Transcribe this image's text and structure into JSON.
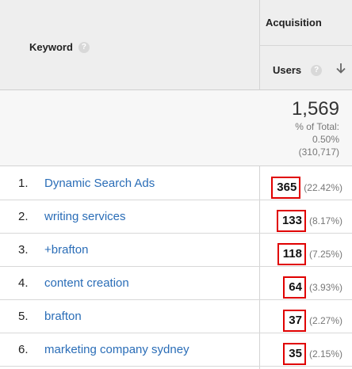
{
  "header": {
    "keyword_label": "Keyword",
    "group_label": "Acquisition",
    "users_label": "Users",
    "help_glyph": "?",
    "sort_direction": "descending"
  },
  "totals": {
    "value": "1,569",
    "line1": "% of Total:",
    "line2": "0.50%",
    "line3": "(310,717)"
  },
  "rows": [
    {
      "rank": "1.",
      "keyword": "Dynamic Search Ads",
      "users": "365",
      "pct": "(22.42%)"
    },
    {
      "rank": "2.",
      "keyword": "writing services",
      "users": "133",
      "pct": "(8.17%)"
    },
    {
      "rank": "3.",
      "keyword": "+brafton",
      "users": "118",
      "pct": "(7.25%)"
    },
    {
      "rank": "4.",
      "keyword": "content creation",
      "users": "64",
      "pct": "(3.93%)"
    },
    {
      "rank": "5.",
      "keyword": "brafton",
      "users": "37",
      "pct": "(2.27%)"
    },
    {
      "rank": "6.",
      "keyword": "marketing company sydney",
      "users": "35",
      "pct": "(2.15%)"
    }
  ],
  "colors": {
    "link": "#2a6db7",
    "highlight_border": "#e00000",
    "header_bg": "#eeeeee"
  }
}
